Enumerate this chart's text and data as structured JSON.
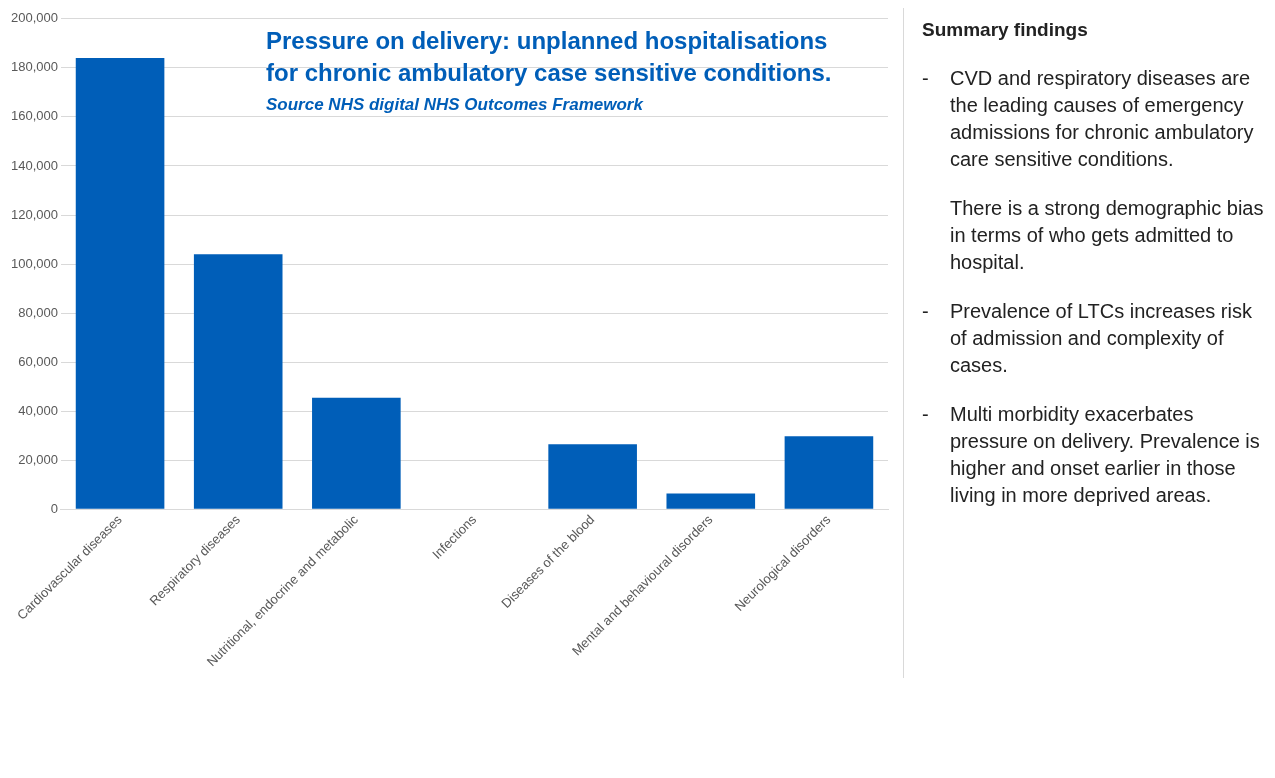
{
  "chart_data": {
    "type": "bar",
    "title": "Pressure on delivery: unplanned hospitalisations for chronic ambulatory case sensitive conditions.",
    "categories": [
      "Cardiovascular diseases",
      "Respiratory diseases",
      "Nutritional, endocrine and metabolic",
      "Infections",
      "Diseases of the blood",
      "Mental and behavioural disorders",
      "Neurological disorders"
    ],
    "values": [
      184000,
      104000,
      45500,
      0,
      26500,
      6500,
      29800
    ],
    "color": "#005eb8",
    "ylim": [
      0,
      200000
    ],
    "yticks": [
      {
        "value": 0,
        "label": "0"
      },
      {
        "value": 20000,
        "label": "20,000"
      },
      {
        "value": 40000,
        "label": "40,000"
      },
      {
        "value": 60000,
        "label": "60,000"
      },
      {
        "value": 80000,
        "label": "80,000"
      },
      {
        "value": 100000,
        "label": "100,000"
      },
      {
        "value": 120000,
        "label": "120,000"
      },
      {
        "value": 140000,
        "label": "140,000"
      },
      {
        "value": 160000,
        "label": "160,000"
      },
      {
        "value": 180000,
        "label": "180,000"
      },
      {
        "value": 200000,
        "label": "200,000"
      }
    ],
    "grid": "y",
    "legend": false,
    "annotations": [
      "Source NHS digital NHS Outcomes Framework",
      "Summary findings",
      "- CVD and respiratory diseases are the leading causes of emergency admissions for chronic ambulatory care sensitive conditions.",
      "There is a strong demographic bias in terms of who gets admitted to hospital.",
      "- Prevalence of LTCs increases risk of admission and complexity of cases.",
      "- Multi morbidity exacerbates pressure on delivery. Prevalence is higher and onset earlier in those living in more deprived areas."
    ]
  }
}
